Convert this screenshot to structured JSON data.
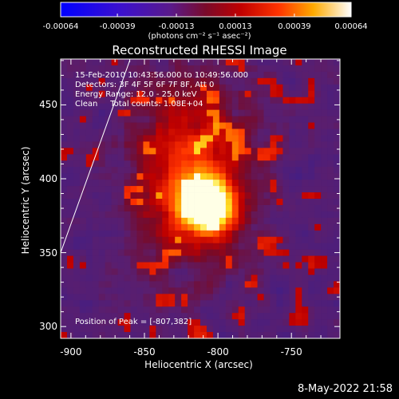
{
  "chart_data": {
    "type": "heatmap",
    "title": "Reconstructed RHESSI Image",
    "xlabel": "Heliocentric X (arcsec)",
    "ylabel": "Heliocentric Y (arcsec)",
    "xlim": [
      -907,
      -717
    ],
    "ylim": [
      292,
      481
    ],
    "x_ticks": [
      "-900",
      "-850",
      "-800",
      "-750"
    ],
    "x_tick_values": [
      -900,
      -850,
      -800,
      -750
    ],
    "y_ticks": [
      "300",
      "350",
      "400",
      "450"
    ],
    "y_tick_values": [
      300,
      350,
      400,
      450
    ],
    "colorbar": {
      "range": [
        -0.00064,
        0.00064
      ],
      "tick_labels": [
        "-0.00064",
        "-0.00039",
        "-0.00013",
        "0.00013",
        "0.00039",
        "0.00064"
      ],
      "tick_values": [
        -0.00064,
        -0.00039,
        -0.00013,
        0.00013,
        0.00039,
        0.00064
      ],
      "units": "(photons cm⁻² s⁻¹ asec⁻²)",
      "colormap": "blue-purple-red-yellow-white"
    },
    "annotations": {
      "time_range": "15-Feb-2010 10:43:56.000 to 10:49:56.000",
      "detectors": "Detectors: 3F 4F 5F 6F 7F 8F, Att 0",
      "energy": "Energy Range: 12.0 - 25.0 keV",
      "clean": "Clean     Total counts: 1.08E+04",
      "peak": "Position of Peak = [-807,382]"
    },
    "peak": {
      "x": -807,
      "y": 382
    },
    "limb_line": [
      [
        -907,
        350
      ],
      [
        -860,
        480
      ]
    ],
    "grid": false
  },
  "footer": {
    "date": "8-May-2022 21:58"
  },
  "colors": {
    "background": "#000000",
    "foreground": "#ffffff"
  }
}
